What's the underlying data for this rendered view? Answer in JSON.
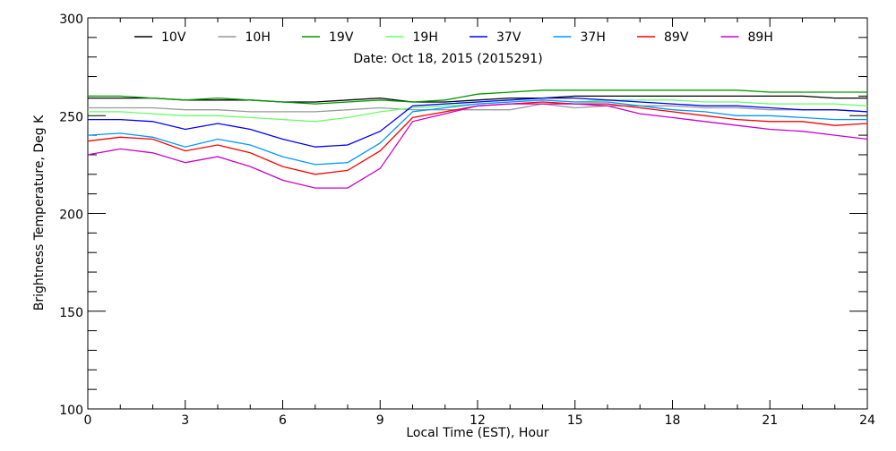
{
  "chart_data": {
    "type": "line",
    "title": "Date: Oct 18, 2015 (2015291)",
    "xlabel": "Local Time (EST), Hour",
    "ylabel": "Brightness Temperature, Deg K",
    "xlim": [
      0,
      24
    ],
    "ylim": [
      100,
      300
    ],
    "xticks": [
      "0",
      "3",
      "6",
      "9",
      "12",
      "15",
      "18",
      "21",
      "24"
    ],
    "yticks": [
      "100",
      "150",
      "200",
      "250",
      "300"
    ],
    "legend_position": "top",
    "x": [
      0,
      1,
      2,
      3,
      4,
      5,
      6,
      7,
      8,
      9,
      10,
      11,
      12,
      13,
      14,
      15,
      16,
      17,
      18,
      19,
      20,
      21,
      22,
      23,
      24
    ],
    "series": [
      {
        "name": "10V",
        "color": "#000000",
        "values": [
          259,
          259,
          259,
          258,
          258,
          258,
          257,
          257,
          258,
          259,
          257,
          257,
          258,
          259,
          259,
          260,
          260,
          260,
          260,
          260,
          260,
          260,
          260,
          259,
          259
        ]
      },
      {
        "name": "10H",
        "color": "#999999",
        "values": [
          254,
          254,
          254,
          253,
          253,
          252,
          252,
          252,
          253,
          254,
          253,
          253,
          253,
          253,
          256,
          254,
          255,
          255,
          255,
          254,
          254,
          253,
          253,
          253,
          252
        ]
      },
      {
        "name": "19V",
        "color": "#009900",
        "values": [
          260,
          260,
          259,
          258,
          259,
          258,
          257,
          256,
          257,
          258,
          257,
          258,
          261,
          262,
          263,
          263,
          263,
          263,
          263,
          263,
          263,
          262,
          262,
          262,
          262
        ]
      },
      {
        "name": "19H",
        "color": "#66ff66",
        "values": [
          252,
          252,
          251,
          250,
          250,
          249,
          248,
          247,
          249,
          252,
          254,
          255,
          256,
          257,
          258,
          257,
          258,
          258,
          258,
          257,
          257,
          256,
          256,
          256,
          255
        ]
      },
      {
        "name": "37V",
        "color": "#0000ff",
        "values": [
          248,
          248,
          247,
          243,
          246,
          243,
          238,
          234,
          235,
          242,
          255,
          256,
          257,
          258,
          259,
          259,
          258,
          257,
          256,
          255,
          255,
          254,
          253,
          253,
          252
        ]
      },
      {
        "name": "37H",
        "color": "#0099ff",
        "values": [
          240,
          241,
          239,
          234,
          238,
          235,
          229,
          225,
          226,
          236,
          252,
          254,
          256,
          257,
          258,
          257,
          257,
          255,
          253,
          252,
          250,
          250,
          249,
          248,
          248
        ]
      },
      {
        "name": "89V",
        "color": "#ff0000",
        "values": [
          237,
          239,
          238,
          232,
          235,
          231,
          224,
          220,
          222,
          232,
          249,
          252,
          255,
          256,
          257,
          256,
          256,
          254,
          252,
          250,
          248,
          247,
          247,
          245,
          246
        ]
      },
      {
        "name": "89H",
        "color": "#cc00cc",
        "values": [
          230,
          233,
          231,
          226,
          229,
          224,
          217,
          213,
          213,
          223,
          247,
          251,
          255,
          256,
          256,
          256,
          255,
          251,
          249,
          247,
          245,
          243,
          242,
          240,
          238
        ]
      }
    ]
  }
}
